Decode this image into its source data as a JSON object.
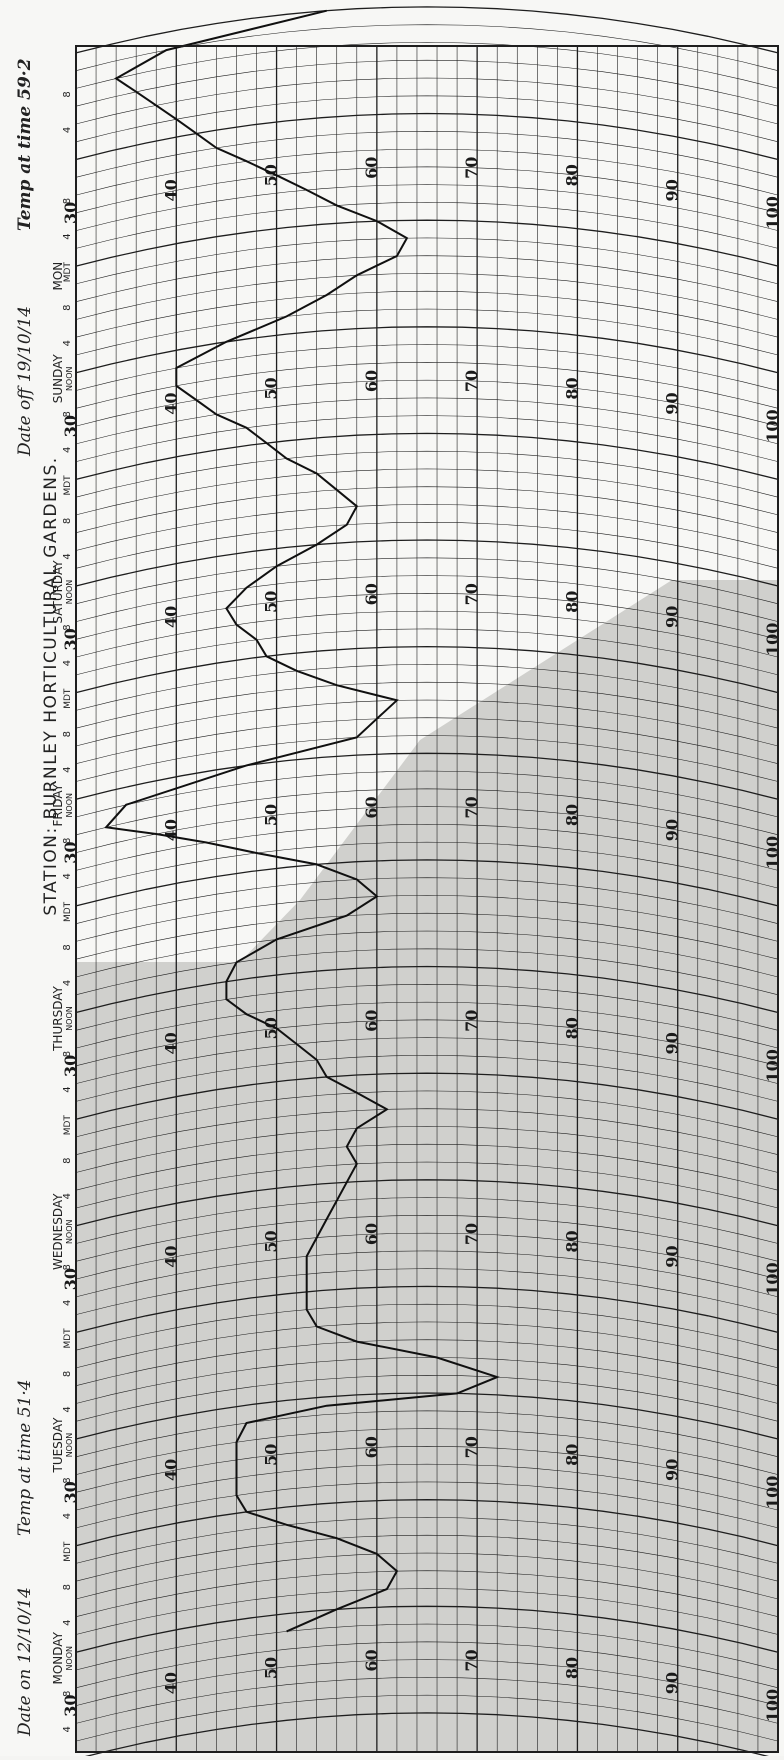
{
  "title": "STATION: BURNLEY HORTICULTURAL GARDENS.",
  "date_on": "Date on 12/10/14",
  "temp_at_time_on": "Temp at time 51·4",
  "date_off": "Date off 19/10/14",
  "temp_at_time_off": "Temp at time 59·2",
  "day_labels": [
    "MONDAY",
    "TUESDAY",
    "WEDNESDAY",
    "THURSDAY",
    "FRIDAY",
    "SATURDAY",
    "SUNDAY",
    "MON"
  ],
  "noon_label": "NOON",
  "midnight_label": "MDT",
  "hour_labels": [
    "4",
    "8",
    "4",
    "8"
  ],
  "colors": {
    "paper": "#f7f7f5",
    "grid": "#1e1e1e",
    "shade": "#c9c9c6",
    "trace": "#101010"
  },
  "chart_data": {
    "type": "line",
    "title": "STATION: BURNLEY HORTICULTURAL GARDENS.",
    "x_unit": "hours from Monday 00:00",
    "xlim": [
      0,
      192
    ],
    "ylim": [
      30,
      100
    ],
    "ytick_labels": [
      "30",
      "40",
      "50",
      "60",
      "70",
      "80",
      "90",
      "100"
    ],
    "series": [
      {
        "x": [
          10,
          12,
          14,
          16,
          18,
          20,
          22,
          24,
          26,
          28,
          30,
          32,
          34,
          35,
          36,
          38,
          40,
          42,
          44,
          46,
          48,
          52,
          56,
          60,
          62,
          64,
          66,
          68,
          70,
          72,
          74,
          76,
          78,
          80,
          82,
          84,
          86,
          88,
          90,
          92,
          94,
          96,
          98,
          100,
          102,
          104,
          106,
          108,
          110,
          112,
          114,
          116,
          118,
          120,
          122,
          124,
          126,
          128,
          130,
          132,
          134,
          136,
          138,
          140,
          142,
          144,
          146,
          148,
          150,
          152,
          154,
          156,
          158,
          160,
          162,
          164,
          166,
          168,
          170,
          172,
          174,
          176,
          178,
          180,
          182,
          184,
          186,
          188,
          190,
          192
        ],
        "y": [
          51,
          56,
          61,
          62,
          60,
          56,
          51,
          47,
          46,
          46,
          46,
          46,
          47,
          55,
          68,
          72,
          66,
          58,
          54,
          53,
          53,
          53,
          55,
          57,
          58,
          57,
          58,
          61,
          58,
          55,
          54,
          52,
          50,
          47,
          45,
          45,
          46,
          50,
          57,
          60,
          58,
          54,
          48,
          43,
          38,
          33,
          35,
          47,
          58,
          60,
          62,
          56,
          52,
          49,
          48,
          46,
          45,
          47,
          50,
          54,
          57,
          58,
          56,
          54,
          51,
          49,
          47,
          44,
          42,
          40,
          40,
          45,
          51,
          55,
          58,
          62,
          63,
          60,
          56,
          53,
          50,
          47,
          44,
          42,
          40,
          38,
          36,
          34,
          39,
          55
        ]
      }
    ]
  }
}
